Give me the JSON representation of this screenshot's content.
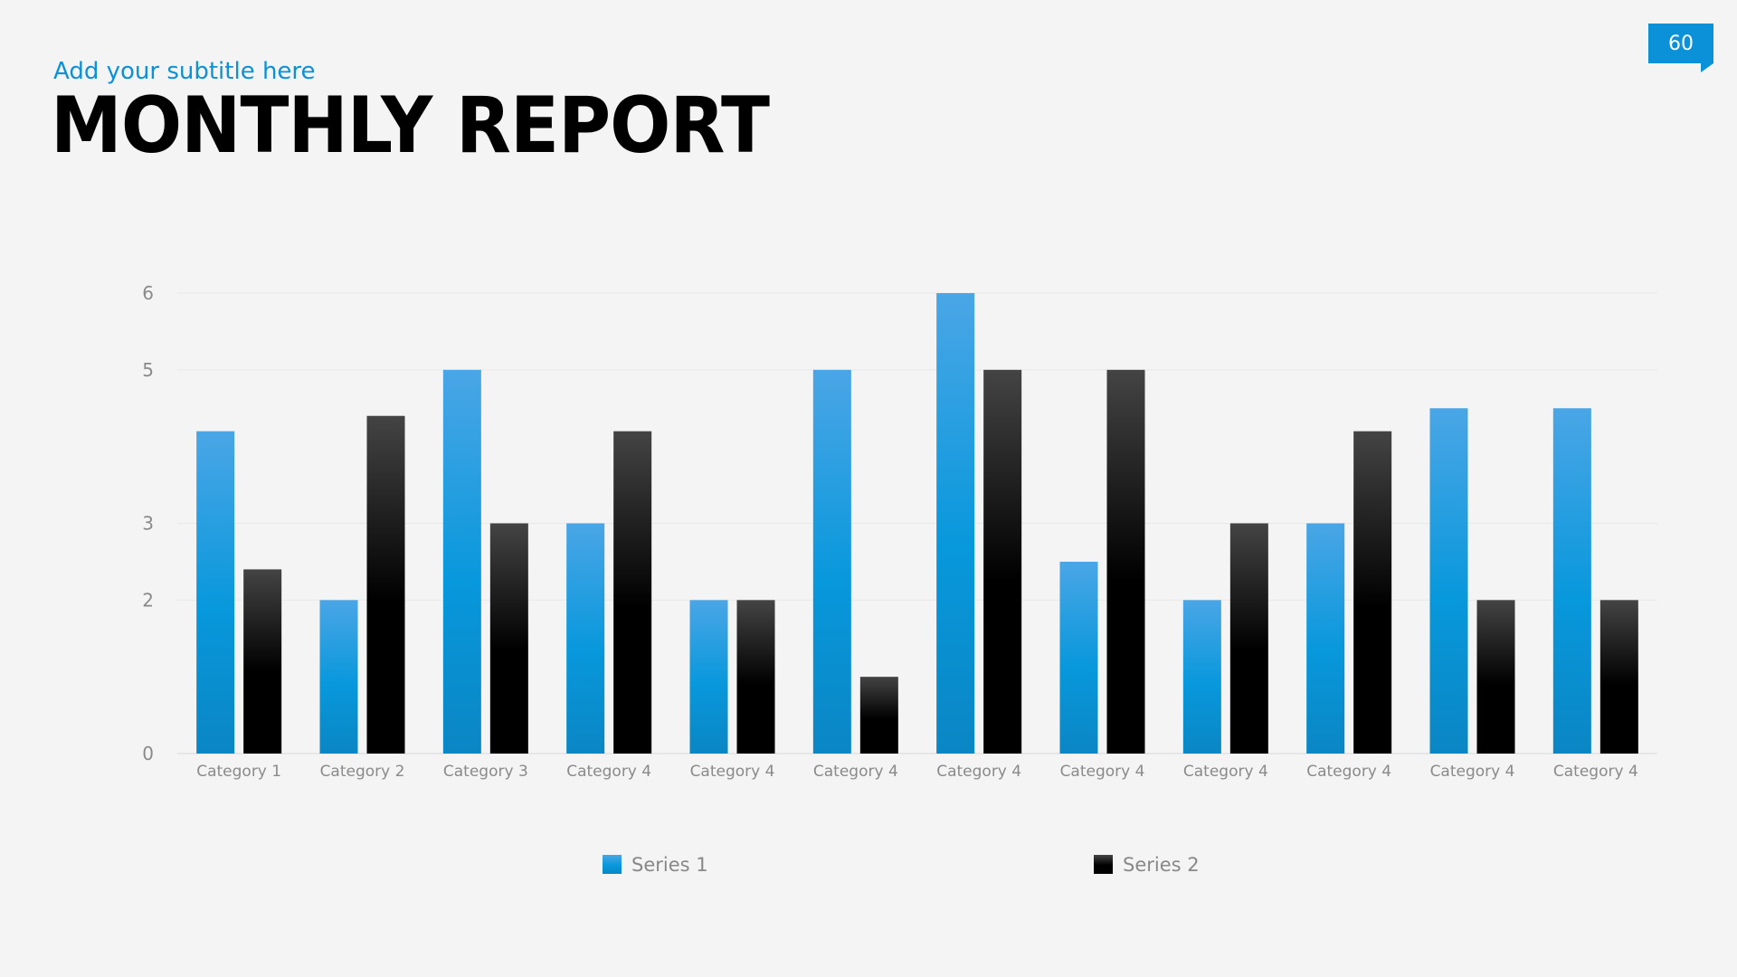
{
  "header": {
    "subtitle": "Add your subtitle here",
    "title": "MONTHLY REPORT",
    "page_number": "60"
  },
  "colors": {
    "accent": "#0a91d8",
    "series1_top": "#4aa6e6",
    "series1_mid": "#0898dc",
    "series1_bottom": "#0a86c4",
    "series2_top": "#444444",
    "series2_mid": "#000000",
    "series2_bottom": "#000000"
  },
  "chart_data": {
    "type": "bar",
    "categories": [
      "Category 1",
      "Category 2",
      "Category 3",
      "Category 4",
      "Category 4",
      "Category 4",
      "Category 4",
      "Category 4",
      "Category 4",
      "Category 4",
      "Category 4",
      "Category 4"
    ],
    "series": [
      {
        "name": "Series 1",
        "values": [
          4.2,
          2.0,
          5.0,
          3.0,
          2.0,
          5.0,
          6.0,
          2.5,
          2.0,
          3.0,
          4.5,
          4.5
        ]
      },
      {
        "name": "Series 2",
        "values": [
          2.4,
          4.4,
          3.0,
          4.2,
          2.0,
          1.0,
          5.0,
          5.0,
          3.0,
          4.2,
          2.0,
          2.0
        ]
      }
    ],
    "yticks": [
      "0",
      "2",
      "3",
      "5",
      "6"
    ],
    "ylim": [
      0,
      6
    ],
    "grid": true,
    "legend_position": "bottom"
  }
}
